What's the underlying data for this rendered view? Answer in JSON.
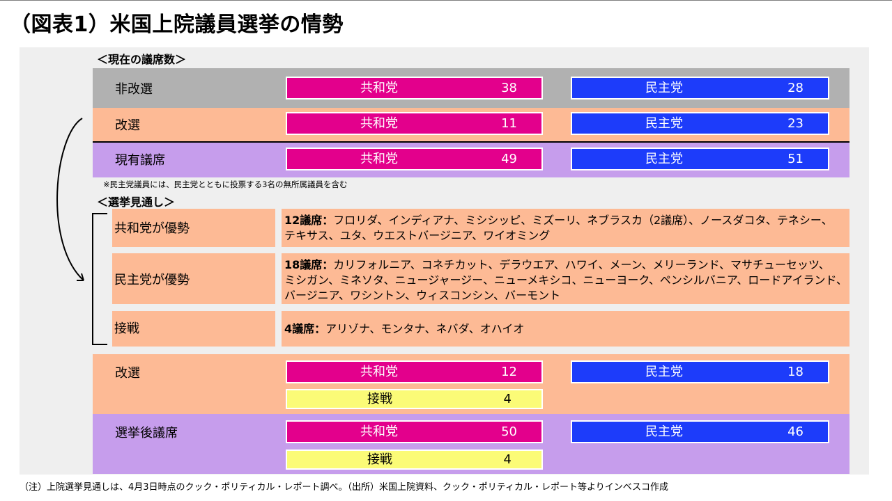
{
  "title": "（図表1）米国上院議員選挙の情勢",
  "current_seats": {
    "heading": "＜現在の議席数＞",
    "rows": [
      {
        "label": "非改選",
        "rep_name": "共和党",
        "rep_seats": "38",
        "dem_name": "民主党",
        "dem_seats": "28"
      },
      {
        "label": "改選",
        "rep_name": "共和党",
        "rep_seats": "11",
        "dem_name": "民主党",
        "dem_seats": "23"
      },
      {
        "label": "現有議席",
        "rep_name": "共和党",
        "rep_seats": "49",
        "dem_name": "民主党",
        "dem_seats": "51"
      }
    ],
    "note": "※民主党議員には、民主党とともに投票する3名の無所属議員を含む"
  },
  "forecast": {
    "heading": "＜選挙見通し＞",
    "categories": [
      {
        "label": "共和党が優勢",
        "count": "12議席：",
        "lines": [
          "フロリダ、インディアナ、ミシシッピ、ミズーリ、ネブラスカ（2議席）、ノースダコタ、テネシー、",
          "テキサス、ユタ、ウエストバージニア、ワイオミング"
        ]
      },
      {
        "label": "民主党が優勢",
        "count": "18議席：",
        "lines": [
          "カリフォルニア、コネチカット、デラウエア、ハワイ、メーン、メリーランド、マサチューセッツ、",
          "ミシガン、ミネソタ、ニュージャージー、ニューメキシコ、ニューヨーク、ペンシルバニア、ロードアイランド、",
          "バージニア、ワシントン、ウィスコンシン、バーモント"
        ]
      },
      {
        "label": "接戦",
        "count": "4議席：",
        "lines": [
          "アリゾナ、モンタナ、ネバダ、オハイオ"
        ]
      }
    ]
  },
  "results": [
    {
      "label": "改選",
      "rep_name": "共和党",
      "rep_seats": "12",
      "dem_name": "民主党",
      "dem_seats": "18",
      "tossup_name": "接戦",
      "tossup_seats": "4"
    },
    {
      "label": "選挙後議席",
      "rep_name": "共和党",
      "rep_seats": "50",
      "dem_name": "民主党",
      "dem_seats": "46",
      "tossup_name": "接戦",
      "tossup_seats": "4"
    }
  ],
  "footnote": "（注）上院選挙見通しは、4月3日時点のクック・ポリティカル・レポート調べ。（出所）米国上院資料、クック・ポリティカル・レポート等よりインベスコ作成",
  "colors": {
    "republican": "#e3008c",
    "democrat": "#1d3cfa",
    "tossup": "#fbfb77",
    "band_gray": "#b1b1b1",
    "band_peach": "#fdba95",
    "band_purple": "#c69dec",
    "panel": "#efefef"
  }
}
